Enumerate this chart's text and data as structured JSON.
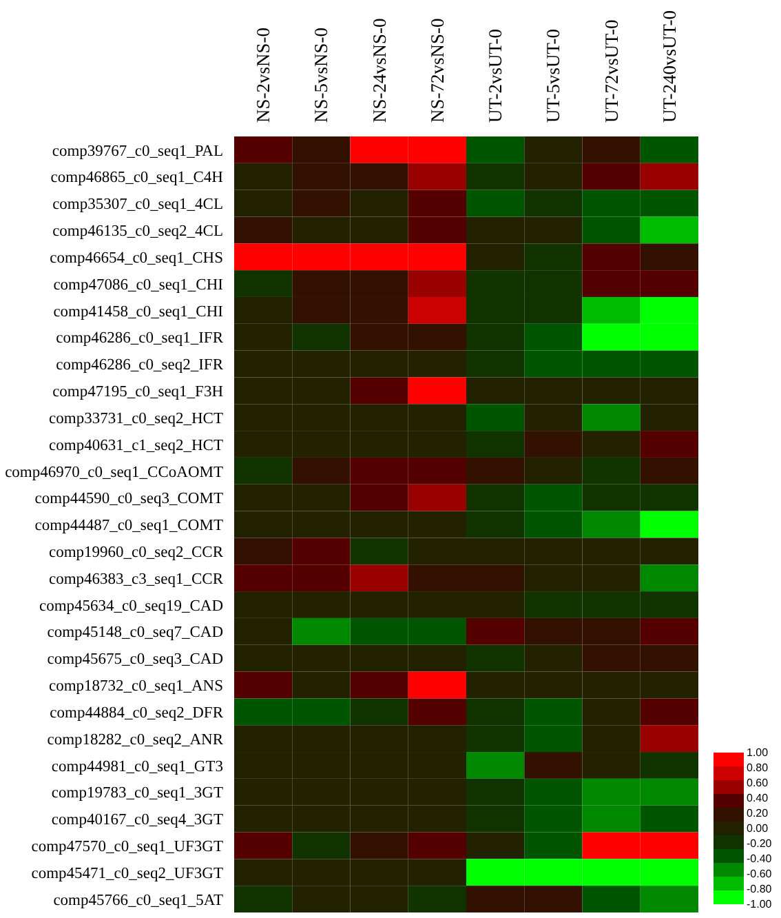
{
  "chart_data": {
    "type": "heatmap",
    "categories": [
      "NS-2vsNS-0",
      "NS-5vsNS-0",
      "NS-24vsNS-0",
      "NS-72vsNS-0",
      "UT-2vsUT-0",
      "UT-5vsUT-0",
      "UT-72vsUT-0",
      "UT-240vsUT-0"
    ],
    "y_categories": [
      "comp39767_c0_seq1_PAL",
      "comp46865_c0_seq1_C4H",
      "comp35307_c0_seq1_4CL",
      "comp46135_c0_seq2_4CL",
      "comp46654_c0_seq1_CHS",
      "comp47086_c0_seq1_CHI",
      "comp41458_c0_seq1_CHI",
      "comp46286_c0_seq1_IFR",
      "comp46286_c0_seq2_IFR",
      "comp47195_c0_seq1_F3H",
      "comp33731_c0_seq2_HCT",
      "comp40631_c1_seq2_HCT",
      "comp46970_c0_seq1_CCoAOMT",
      "comp44590_c0_seq3_COMT",
      "comp44487_c0_seq1_COMT",
      "comp19960_c0_seq2_CCR",
      "comp46383_c3_seq1_CCR",
      "comp45634_c0_seq19_CAD",
      "comp45148_c0_seq7_CAD",
      "comp45675_c0_seq3_CAD",
      "comp18732_c0_seq1_ANS",
      "comp44884_c0_seq2_DFR",
      "comp18282_c0_seq2_ANR",
      "comp44981_c0_seq1_GT3",
      "comp19783_c0_seq1_3GT",
      "comp40167_c0_seq4_3GT",
      "comp47570_c0_seq1_UF3GT",
      "comp45471_c0_seq2_UF3GT",
      "comp45766_c0_seq1_5AT"
    ],
    "cells": [
      [
        0.4,
        0.2,
        1,
        1,
        -0.4,
        0,
        0.2,
        -0.4
      ],
      [
        0,
        0.2,
        0.2,
        0.6,
        -0.2,
        0,
        0.4,
        0.6
      ],
      [
        0,
        0.2,
        0,
        0.4,
        -0.4,
        -0.2,
        -0.4,
        -0.4
      ],
      [
        0.2,
        0,
        0,
        0.4,
        0,
        0,
        -0.4,
        -0.8
      ],
      [
        1,
        1,
        1,
        1,
        0,
        -0.2,
        0.4,
        0.2
      ],
      [
        -0.2,
        0.2,
        0.2,
        0.6,
        -0.2,
        -0.2,
        0.4,
        0.4
      ],
      [
        0,
        0.2,
        0.2,
        0.8,
        -0.2,
        -0.2,
        -0.8,
        -1
      ],
      [
        0,
        -0.2,
        0.2,
        0.2,
        -0.2,
        -0.4,
        -1,
        -1
      ],
      [
        0,
        0,
        0,
        0,
        -0.2,
        -0.4,
        -0.4,
        -0.4
      ],
      [
        0,
        0,
        0.4,
        1,
        0,
        0,
        0,
        0
      ],
      [
        0,
        0,
        0,
        0,
        -0.4,
        0,
        -0.6,
        0
      ],
      [
        0,
        0,
        0,
        0,
        -0.2,
        0.2,
        0,
        0.4
      ],
      [
        -0.2,
        0.2,
        0.4,
        0.4,
        0.2,
        0,
        -0.2,
        0.2
      ],
      [
        0,
        0,
        0.4,
        0.6,
        -0.2,
        -0.4,
        -0.2,
        -0.2
      ],
      [
        0,
        0,
        0,
        0,
        -0.2,
        -0.4,
        -0.6,
        -1
      ],
      [
        0.2,
        0.4,
        -0.2,
        0,
        0,
        0,
        0,
        0
      ],
      [
        0.4,
        0.4,
        0.6,
        0.2,
        0.2,
        0,
        0,
        -0.6
      ],
      [
        0,
        0,
        0,
        0,
        0,
        -0.2,
        -0.2,
        -0.2
      ],
      [
        0,
        -0.6,
        -0.4,
        -0.4,
        0.4,
        0.2,
        0.2,
        0.4
      ],
      [
        0,
        0,
        0,
        0,
        -0.2,
        0,
        0.2,
        0.2
      ],
      [
        0.4,
        0,
        0.4,
        1,
        0,
        0,
        0,
        0
      ],
      [
        -0.4,
        -0.4,
        -0.2,
        0.4,
        -0.2,
        -0.4,
        0,
        0.4
      ],
      [
        0,
        0,
        0,
        0,
        -0.2,
        -0.4,
        0,
        0.6
      ],
      [
        0,
        0,
        0,
        0,
        -0.6,
        0.2,
        0,
        -0.2
      ],
      [
        0,
        0,
        0,
        0,
        -0.2,
        -0.4,
        -0.6,
        -0.6
      ],
      [
        0,
        0,
        0,
        0,
        -0.2,
        -0.4,
        -0.6,
        -0.4
      ],
      [
        0.4,
        -0.2,
        0.2,
        0.4,
        0,
        -0.4,
        1,
        1
      ],
      [
        0,
        0,
        0,
        0,
        -1,
        -1,
        -1,
        -1
      ],
      [
        -0.2,
        0,
        0,
        -0.2,
        0.2,
        0.2,
        -0.4,
        -0.6
      ]
    ],
    "clim": [
      -1,
      1
    ],
    "cticks": [
      {
        "value": 1,
        "label": "1.00"
      },
      {
        "value": 0.8,
        "label": "0.80"
      },
      {
        "value": 0.6,
        "label": "0.60"
      },
      {
        "value": 0.4,
        "label": "0.40"
      },
      {
        "value": 0.2,
        "label": "0.20"
      },
      {
        "value": 0,
        "label": "0.00"
      },
      {
        "value": -0.2,
        "label": "-0.20"
      },
      {
        "value": -0.4,
        "label": "-0.40"
      },
      {
        "value": -0.6,
        "label": "-0.60"
      },
      {
        "value": -0.8,
        "label": "-0.80"
      },
      {
        "value": -1,
        "label": "-1.00"
      }
    ]
  }
}
